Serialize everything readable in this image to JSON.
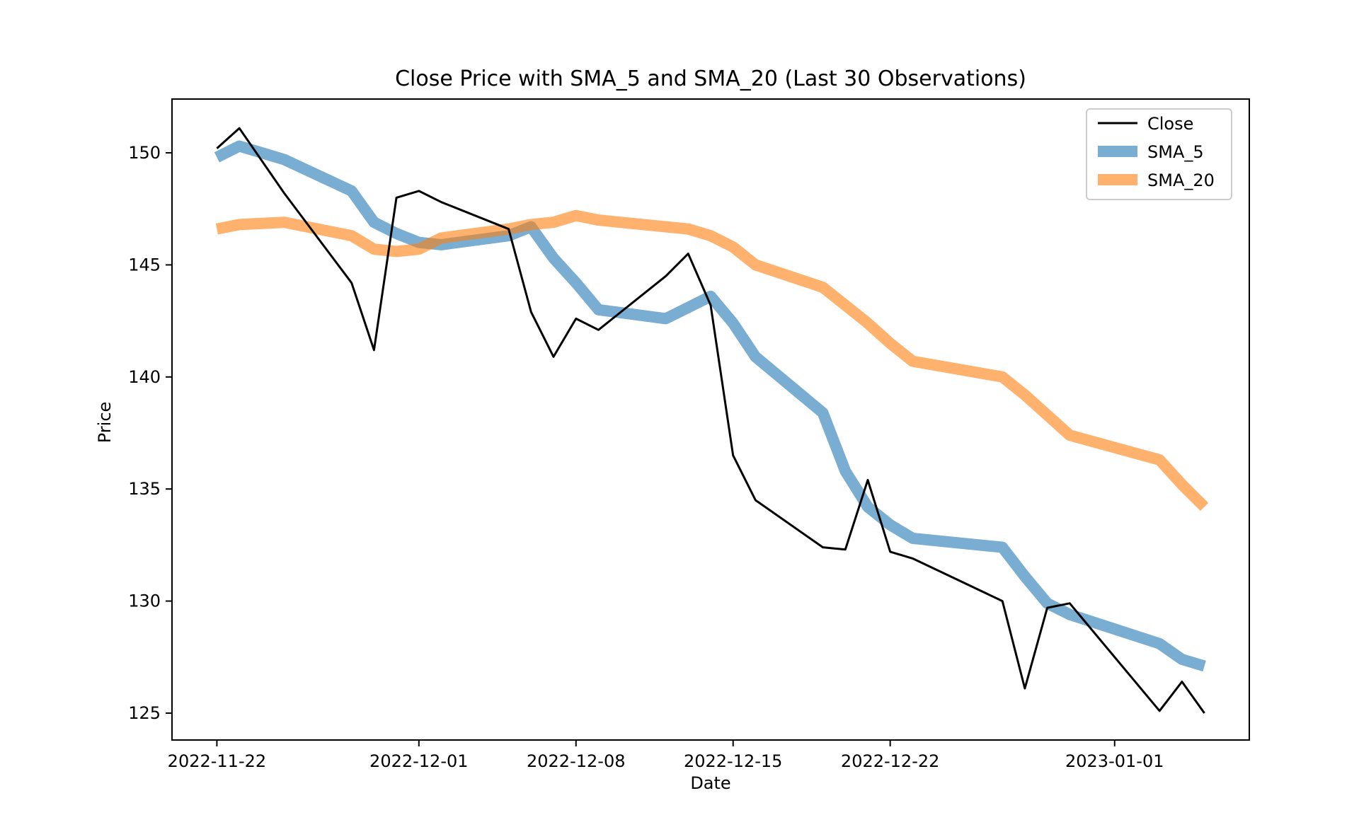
{
  "chart_data": {
    "type": "line",
    "title": "Close Price with SMA_5 and SMA_20 (Last 30 Observations)",
    "xlabel": "Date",
    "ylabel": "Price",
    "xlim": [
      "2022-11-20",
      "2023-01-07"
    ],
    "ylim": [
      123.8,
      152.4
    ],
    "xticks": [
      "2022-11-22",
      "2022-12-01",
      "2022-12-08",
      "2022-12-15",
      "2022-12-22",
      "2023-01-01"
    ],
    "yticks": [
      125,
      130,
      135,
      140,
      145,
      150
    ],
    "grid": false,
    "legend_position": "top-right",
    "x": [
      "2022-11-22",
      "2022-11-23",
      "2022-11-25",
      "2022-11-28",
      "2022-11-29",
      "2022-11-30",
      "2022-12-01",
      "2022-12-02",
      "2022-12-05",
      "2022-12-06",
      "2022-12-07",
      "2022-12-08",
      "2022-12-09",
      "2022-12-12",
      "2022-12-13",
      "2022-12-14",
      "2022-12-15",
      "2022-12-16",
      "2022-12-19",
      "2022-12-20",
      "2022-12-21",
      "2022-12-22",
      "2022-12-23",
      "2022-12-27",
      "2022-12-28",
      "2022-12-29",
      "2022-12-30",
      "2023-01-03",
      "2023-01-04",
      "2023-01-05"
    ],
    "series": [
      {
        "name": "Close",
        "color": "#000000",
        "values": [
          150.2,
          151.1,
          148.2,
          144.2,
          141.2,
          148.0,
          148.3,
          147.8,
          146.6,
          142.9,
          140.9,
          142.6,
          142.1,
          144.5,
          145.5,
          143.2,
          136.5,
          134.5,
          132.4,
          132.3,
          135.4,
          132.2,
          131.9,
          130.0,
          126.1,
          129.7,
          129.9,
          125.1,
          126.4,
          125.0
        ]
      },
      {
        "name": "SMA_5",
        "color": "#1f77b4",
        "values": [
          149.8,
          150.3,
          149.7,
          148.3,
          146.9,
          146.4,
          146.0,
          145.9,
          146.3,
          146.7,
          145.3,
          144.2,
          143.0,
          142.6,
          143.1,
          143.6,
          142.4,
          140.9,
          138.4,
          135.8,
          134.2,
          133.4,
          132.8,
          132.4,
          131.1,
          129.9,
          129.4,
          128.1,
          127.4,
          127.1
        ]
      },
      {
        "name": "SMA_20",
        "color": "#ff7f0e",
        "values": [
          146.6,
          146.8,
          146.9,
          146.3,
          145.7,
          145.6,
          145.7,
          146.2,
          146.6,
          146.8,
          146.9,
          147.2,
          147.0,
          146.7,
          146.6,
          146.3,
          145.8,
          145.0,
          144.0,
          143.2,
          142.4,
          141.5,
          140.7,
          140.0,
          139.2,
          138.3,
          137.4,
          136.3,
          135.2,
          134.2
        ]
      }
    ]
  }
}
